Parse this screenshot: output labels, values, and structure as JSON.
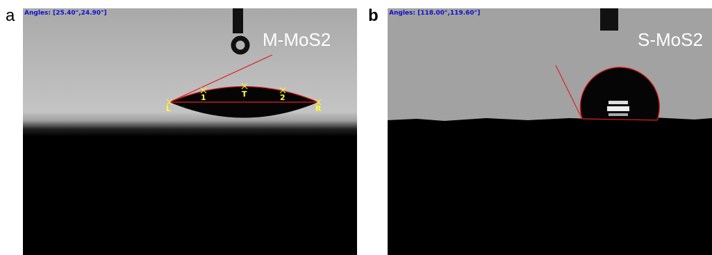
{
  "panels": [
    {
      "label": "a",
      "angles": "Angles: [25.40°,24.90°]",
      "sample": "M-MoS2",
      "markers": [
        "L",
        "1",
        "T",
        "2",
        "R"
      ]
    },
    {
      "label": "b",
      "angles": "Angles: [118.00°,119.60°]",
      "sample": "S-MoS2"
    }
  ]
}
